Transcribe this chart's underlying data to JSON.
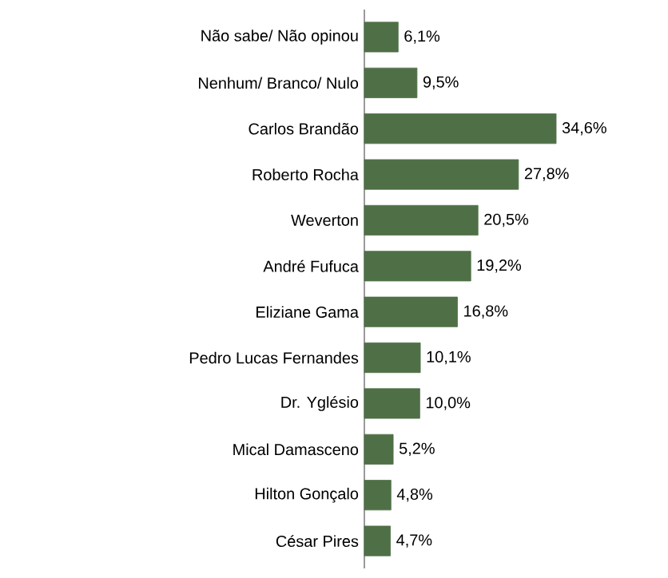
{
  "chart_data": {
    "type": "bar",
    "orientation": "horizontal",
    "color": "#4f7046",
    "categories": [
      "Não sabe/ Não opinou",
      "Nenhum/ Branco/ Nulo",
      "Carlos Brandão",
      "Roberto Rocha",
      "Weverton",
      "André Fufuca",
      "Eliziane Gama",
      "Pedro Lucas Fernandes",
      "Dr. Yglésio",
      "Mical Damasceno",
      "Hilton Gonçalo",
      "César Pires"
    ],
    "values": [
      6.1,
      9.5,
      34.6,
      27.8,
      20.5,
      19.2,
      16.8,
      10.1,
      10.0,
      5.2,
      4.8,
      4.7
    ],
    "value_labels": [
      "6,1%",
      "9,5%",
      "34,6%",
      "27,8%",
      "20,5%",
      "19,2%",
      "16,8%",
      "10,1%",
      "10,0%",
      "5,2%",
      "4,8%",
      "4,7%"
    ]
  }
}
